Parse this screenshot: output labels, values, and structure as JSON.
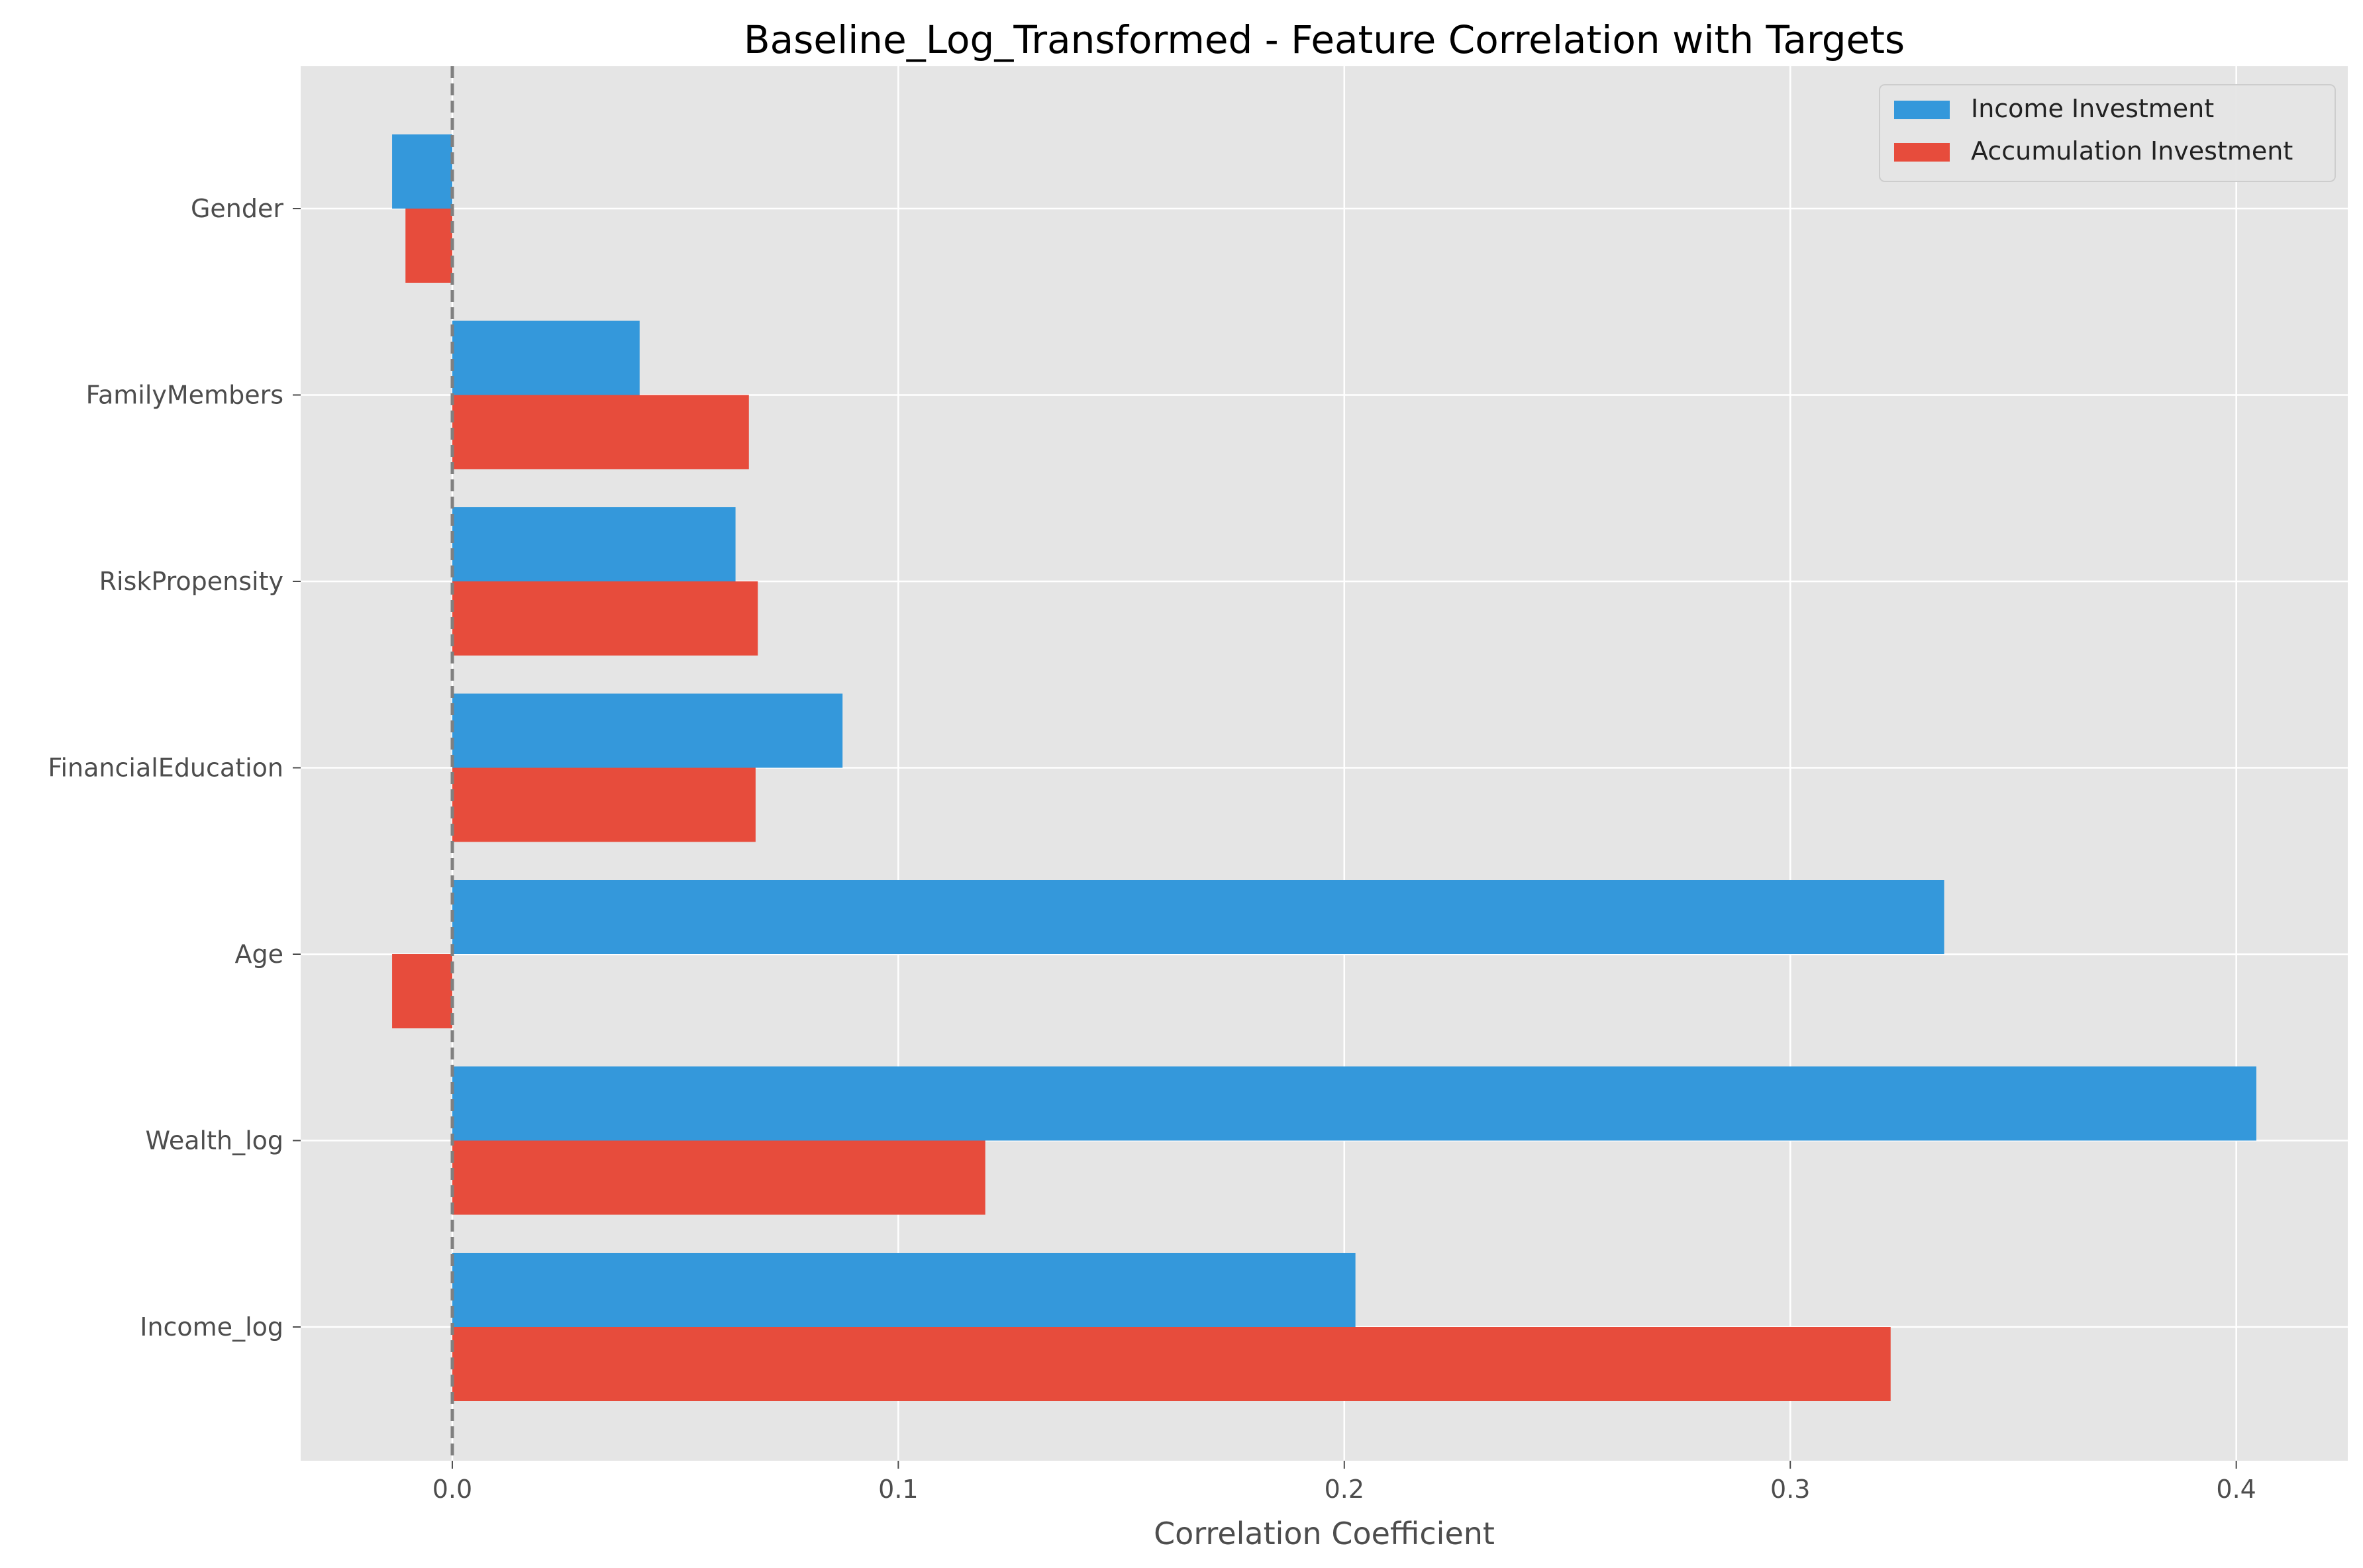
{
  "chart_data": {
    "type": "bar",
    "orientation": "horizontal",
    "title": "Baseline_Log_Transformed - Feature Correlation with Targets",
    "xlabel": "Correlation Coefficient",
    "ylabel": "",
    "xlim": [
      -0.034,
      0.425
    ],
    "xticks": [
      0.0,
      0.1,
      0.2,
      0.3,
      0.4
    ],
    "xtick_labels": [
      "0.0",
      "0.1",
      "0.2",
      "0.3",
      "0.4"
    ],
    "categories": [
      "Gender",
      "FamilyMembers",
      "RiskPropensity",
      "FinancialEducation",
      "Age",
      "Wealth_log",
      "Income_log"
    ],
    "series": [
      {
        "name": "Income Investment",
        "color": "#3498db",
        "values": [
          -0.0135,
          0.042,
          0.0635,
          0.0875,
          0.3345,
          0.4045,
          0.2025
        ]
      },
      {
        "name": "Accumulation Investment",
        "color": "#e74c3c",
        "values": [
          -0.0105,
          0.0665,
          0.0685,
          0.068,
          -0.0135,
          0.1195,
          0.3225
        ]
      }
    ],
    "reference_line": {
      "x": 0,
      "style": "dashed",
      "color": "#808080"
    },
    "grid": true,
    "legend_position": "top-right",
    "background": "#e5e5e5"
  }
}
